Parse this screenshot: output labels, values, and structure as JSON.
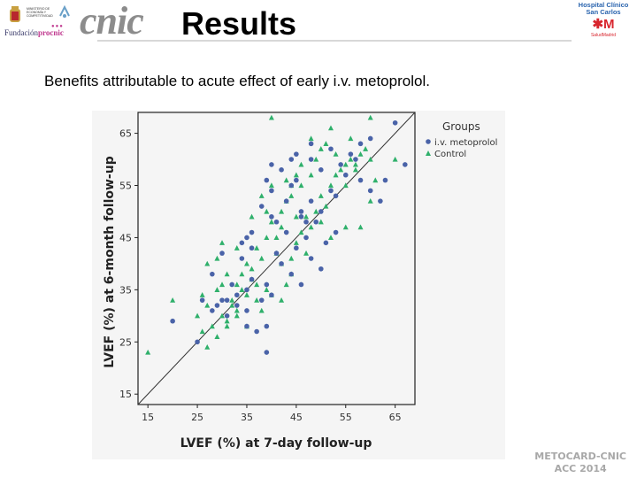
{
  "header": {
    "title": "Results",
    "cnic_logo_text": "cnic",
    "ministerio_text": "MINISTERIO DE ECONOMÍA Y COMPETITIVIDAD",
    "fundacion_text_prefix": "Fundación",
    "fundacion_text_suffix": "procnic",
    "hospital_line1": "Hospital Clínico",
    "hospital_line2": "San Carlos",
    "hospital_brand": "SaludMadrid"
  },
  "subtitle": "Benefits attributable to acute effect of early i.v. metoprolol.",
  "footer": {
    "line1": "METOCARD-CNIC",
    "line2": "ACC 2014"
  },
  "colors": {
    "metoprolol": "#4a63a8",
    "control": "#2fb06b",
    "plot_bg": "#f5f5f5",
    "diagonal": "#333333"
  },
  "chart_data": {
    "type": "scatter",
    "title": "",
    "xlabel": "LVEF (%) at 7-day follow-up",
    "ylabel": "LVEF (%) at 6-month follow-up",
    "xlim": [
      13,
      69
    ],
    "ylim": [
      13,
      69
    ],
    "xticks": [
      15,
      25,
      35,
      45,
      55,
      65
    ],
    "yticks": [
      15,
      25,
      35,
      45,
      55,
      65
    ],
    "legend_title": "Groups",
    "reference_line": "identity",
    "series": [
      {
        "name": "i.v. metoprolol",
        "marker": "circle",
        "points": [
          [
            65,
            67
          ],
          [
            58,
            63
          ],
          [
            60,
            64
          ],
          [
            57,
            60
          ],
          [
            63,
            56
          ],
          [
            67,
            59
          ],
          [
            62,
            52
          ],
          [
            52,
            62
          ],
          [
            48,
            60
          ],
          [
            48,
            63
          ],
          [
            45,
            61
          ],
          [
            44,
            55
          ],
          [
            42,
            58
          ],
          [
            40,
            59
          ],
          [
            39,
            56
          ],
          [
            40,
            54
          ],
          [
            38,
            51
          ],
          [
            40,
            49
          ],
          [
            36,
            46
          ],
          [
            35,
            45
          ],
          [
            34,
            44
          ],
          [
            41,
            42
          ],
          [
            45,
            43
          ],
          [
            47,
            45
          ],
          [
            48,
            52
          ],
          [
            46,
            49
          ],
          [
            49,
            48
          ],
          [
            50,
            50
          ],
          [
            52,
            54
          ],
          [
            53,
            46
          ],
          [
            51,
            44
          ],
          [
            48,
            41
          ],
          [
            50,
            39
          ],
          [
            46,
            36
          ],
          [
            44,
            38
          ],
          [
            42,
            40
          ],
          [
            40,
            34
          ],
          [
            38,
            33
          ],
          [
            36,
            37
          ],
          [
            35,
            35
          ],
          [
            33,
            32
          ],
          [
            31,
            30
          ],
          [
            35,
            28
          ],
          [
            37,
            27
          ],
          [
            39,
            28
          ],
          [
            30,
            33
          ],
          [
            28,
            38
          ],
          [
            28,
            31
          ],
          [
            25,
            25
          ],
          [
            20,
            29
          ],
          [
            32,
            36
          ],
          [
            34,
            41
          ],
          [
            36,
            43
          ],
          [
            41,
            48
          ],
          [
            43,
            52
          ],
          [
            45,
            56
          ],
          [
            50,
            58
          ],
          [
            54,
            59
          ],
          [
            56,
            61
          ],
          [
            58,
            56
          ],
          [
            60,
            54
          ],
          [
            55,
            57
          ],
          [
            53,
            53
          ],
          [
            47,
            48
          ],
          [
            43,
            46
          ],
          [
            46,
            50
          ],
          [
            29,
            32
          ],
          [
            33,
            34
          ],
          [
            39,
            36
          ],
          [
            39,
            23
          ],
          [
            44,
            60
          ],
          [
            30,
            42
          ],
          [
            26,
            33
          ],
          [
            31,
            33
          ],
          [
            35,
            31
          ]
        ]
      },
      {
        "name": "Control",
        "marker": "triangle",
        "points": [
          [
            15,
            23
          ],
          [
            20,
            33
          ],
          [
            25,
            30
          ],
          [
            26,
            34
          ],
          [
            27,
            32
          ],
          [
            28,
            28
          ],
          [
            29,
            35
          ],
          [
            30,
            36
          ],
          [
            31,
            38
          ],
          [
            32,
            33
          ],
          [
            33,
            30
          ],
          [
            34,
            35
          ],
          [
            35,
            28
          ],
          [
            36,
            37
          ],
          [
            37,
            33
          ],
          [
            38,
            31
          ],
          [
            39,
            35
          ],
          [
            40,
            34
          ],
          [
            41,
            42
          ],
          [
            42,
            40
          ],
          [
            43,
            36
          ],
          [
            44,
            38
          ],
          [
            45,
            44
          ],
          [
            46,
            46
          ],
          [
            47,
            42
          ],
          [
            48,
            47
          ],
          [
            49,
            50
          ],
          [
            50,
            53
          ],
          [
            51,
            51
          ],
          [
            52,
            55
          ],
          [
            53,
            57
          ],
          [
            54,
            58
          ],
          [
            55,
            59
          ],
          [
            56,
            60
          ],
          [
            57,
            58
          ],
          [
            58,
            61
          ],
          [
            59,
            62
          ],
          [
            60,
            60
          ],
          [
            61,
            56
          ],
          [
            60,
            68
          ],
          [
            56,
            64
          ],
          [
            52,
            66
          ],
          [
            50,
            62
          ],
          [
            48,
            64
          ],
          [
            46,
            59
          ],
          [
            45,
            57
          ],
          [
            44,
            55
          ],
          [
            43,
            52
          ],
          [
            42,
            50
          ],
          [
            41,
            45
          ],
          [
            40,
            48
          ],
          [
            39,
            45
          ],
          [
            38,
            41
          ],
          [
            37,
            43
          ],
          [
            36,
            39
          ],
          [
            35,
            40
          ],
          [
            34,
            38
          ],
          [
            33,
            36
          ],
          [
            32,
            32
          ],
          [
            31,
            29
          ],
          [
            30,
            30
          ],
          [
            29,
            26
          ],
          [
            27,
            24
          ],
          [
            26,
            27
          ],
          [
            27,
            40
          ],
          [
            29,
            41
          ],
          [
            30,
            44
          ],
          [
            33,
            43
          ],
          [
            36,
            49
          ],
          [
            38,
            53
          ],
          [
            40,
            55
          ],
          [
            43,
            56
          ],
          [
            44,
            53
          ],
          [
            46,
            55
          ],
          [
            48,
            57
          ],
          [
            49,
            60
          ],
          [
            51,
            63
          ],
          [
            53,
            61
          ],
          [
            55,
            55
          ],
          [
            57,
            59
          ],
          [
            60,
            52
          ],
          [
            65,
            60
          ],
          [
            40,
            68
          ],
          [
            45,
            49
          ],
          [
            50,
            48
          ],
          [
            52,
            45
          ],
          [
            55,
            47
          ],
          [
            58,
            47
          ],
          [
            42,
            33
          ],
          [
            37,
            36
          ],
          [
            31,
            28
          ],
          [
            33,
            31
          ],
          [
            35,
            34
          ],
          [
            44,
            41
          ],
          [
            47,
            49
          ],
          [
            42,
            47
          ],
          [
            39,
            50
          ]
        ]
      }
    ]
  }
}
